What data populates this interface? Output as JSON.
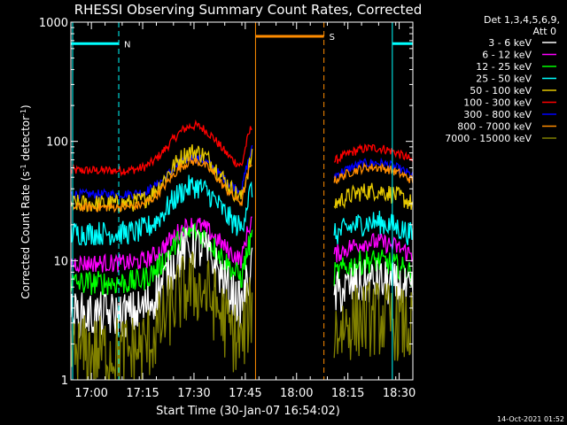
{
  "chart_data": {
    "type": "line",
    "title": "RHESSI Observing Summary Count Rates, Corrected",
    "xlabel": "Start Time (30-Jan-07 16:54:02)",
    "ylabel_main": "Corrected Count Rate (s",
    "ylabel_sup1": "-1",
    "ylabel_mid": " detector",
    "ylabel_sup2": "-1",
    "ylabel_end": ")",
    "y_scale": "log",
    "ylim": [
      1,
      1000
    ],
    "xlim_min": [
      0,
      100
    ],
    "x_ticks_min": [
      6,
      21,
      36,
      51,
      66,
      81,
      96
    ],
    "x_tick_labels": [
      "17:00",
      "17:15",
      "17:30",
      "17:45",
      "18:00",
      "18:15",
      "18:30"
    ],
    "y_tick_labels": [
      {
        "v": 1,
        "label": "1"
      },
      {
        "v": 10,
        "label": "10"
      },
      {
        "v": 100,
        "label": "100"
      },
      {
        "v": 1000,
        "label": "1000"
      }
    ],
    "legend_header": [
      "Det 1,3,4,5,6,9,",
      "Att 0"
    ],
    "legend": [
      {
        "label": "3 - 6 keV",
        "color": "#ffffff"
      },
      {
        "label": "6 - 12 keV",
        "color": "#ff00ff"
      },
      {
        "label": "12 - 25 keV",
        "color": "#00ff00"
      },
      {
        "label": "25 - 50 keV",
        "color": "#00ffff"
      },
      {
        "label": "50 - 100 keV",
        "color": "#e6c800"
      },
      {
        "label": "100 - 300 keV",
        "color": "#ff0000"
      },
      {
        "label": "300 - 800 keV",
        "color": "#0000ff"
      },
      {
        "label": "800 - 7000 keV",
        "color": "#ff8c00"
      },
      {
        "label": "7000 - 15000 keV",
        "color": "#808000"
      }
    ],
    "segments": [
      [
        0,
        53
      ],
      [
        77,
        100
      ]
    ],
    "bump_center_min": 36,
    "series": [
      {
        "color": "#ff0000",
        "base": 57,
        "peak": 135,
        "after": 80,
        "noise": 0.03
      },
      {
        "color": "#0000ff",
        "base": 36,
        "peak": 73,
        "after": 60,
        "noise": 0.03
      },
      {
        "color": "#e6c800",
        "base": 30,
        "peak": 82,
        "after": 35,
        "noise": 0.06
      },
      {
        "color": "#ff8c00",
        "base": 28,
        "peak": 68,
        "after": 55,
        "noise": 0.03
      },
      {
        "color": "#00ffff",
        "base": 17,
        "peak": 42,
        "after": 19,
        "noise": 0.08
      },
      {
        "color": "#ff00ff",
        "base": 9.5,
        "peak": 20,
        "after": 13,
        "noise": 0.06
      },
      {
        "color": "#00ff00",
        "base": 6.5,
        "peak": 17,
        "after": 9,
        "noise": 0.08
      },
      {
        "color": "#ffffff",
        "base": 3.5,
        "peak": 13,
        "after": 6,
        "noise": 0.15
      },
      {
        "color": "#808000",
        "base": 1.7,
        "peak": 6,
        "after": 3,
        "noise": 0.25
      }
    ],
    "flags": [
      {
        "label": "N",
        "color": "#00ffff",
        "spans": [
          [
            0,
            14
          ],
          [
            94,
            100
          ]
        ],
        "y": 660
      },
      {
        "label": "S",
        "color": "#ff8c00",
        "spans": [
          [
            54,
            74
          ]
        ],
        "y": 760
      }
    ],
    "footer_date": "14-Oct-2021 01:52"
  },
  "colors": {
    "axis": "#ffffff",
    "night": "#00ffff",
    "saa": "#ff8c00"
  }
}
